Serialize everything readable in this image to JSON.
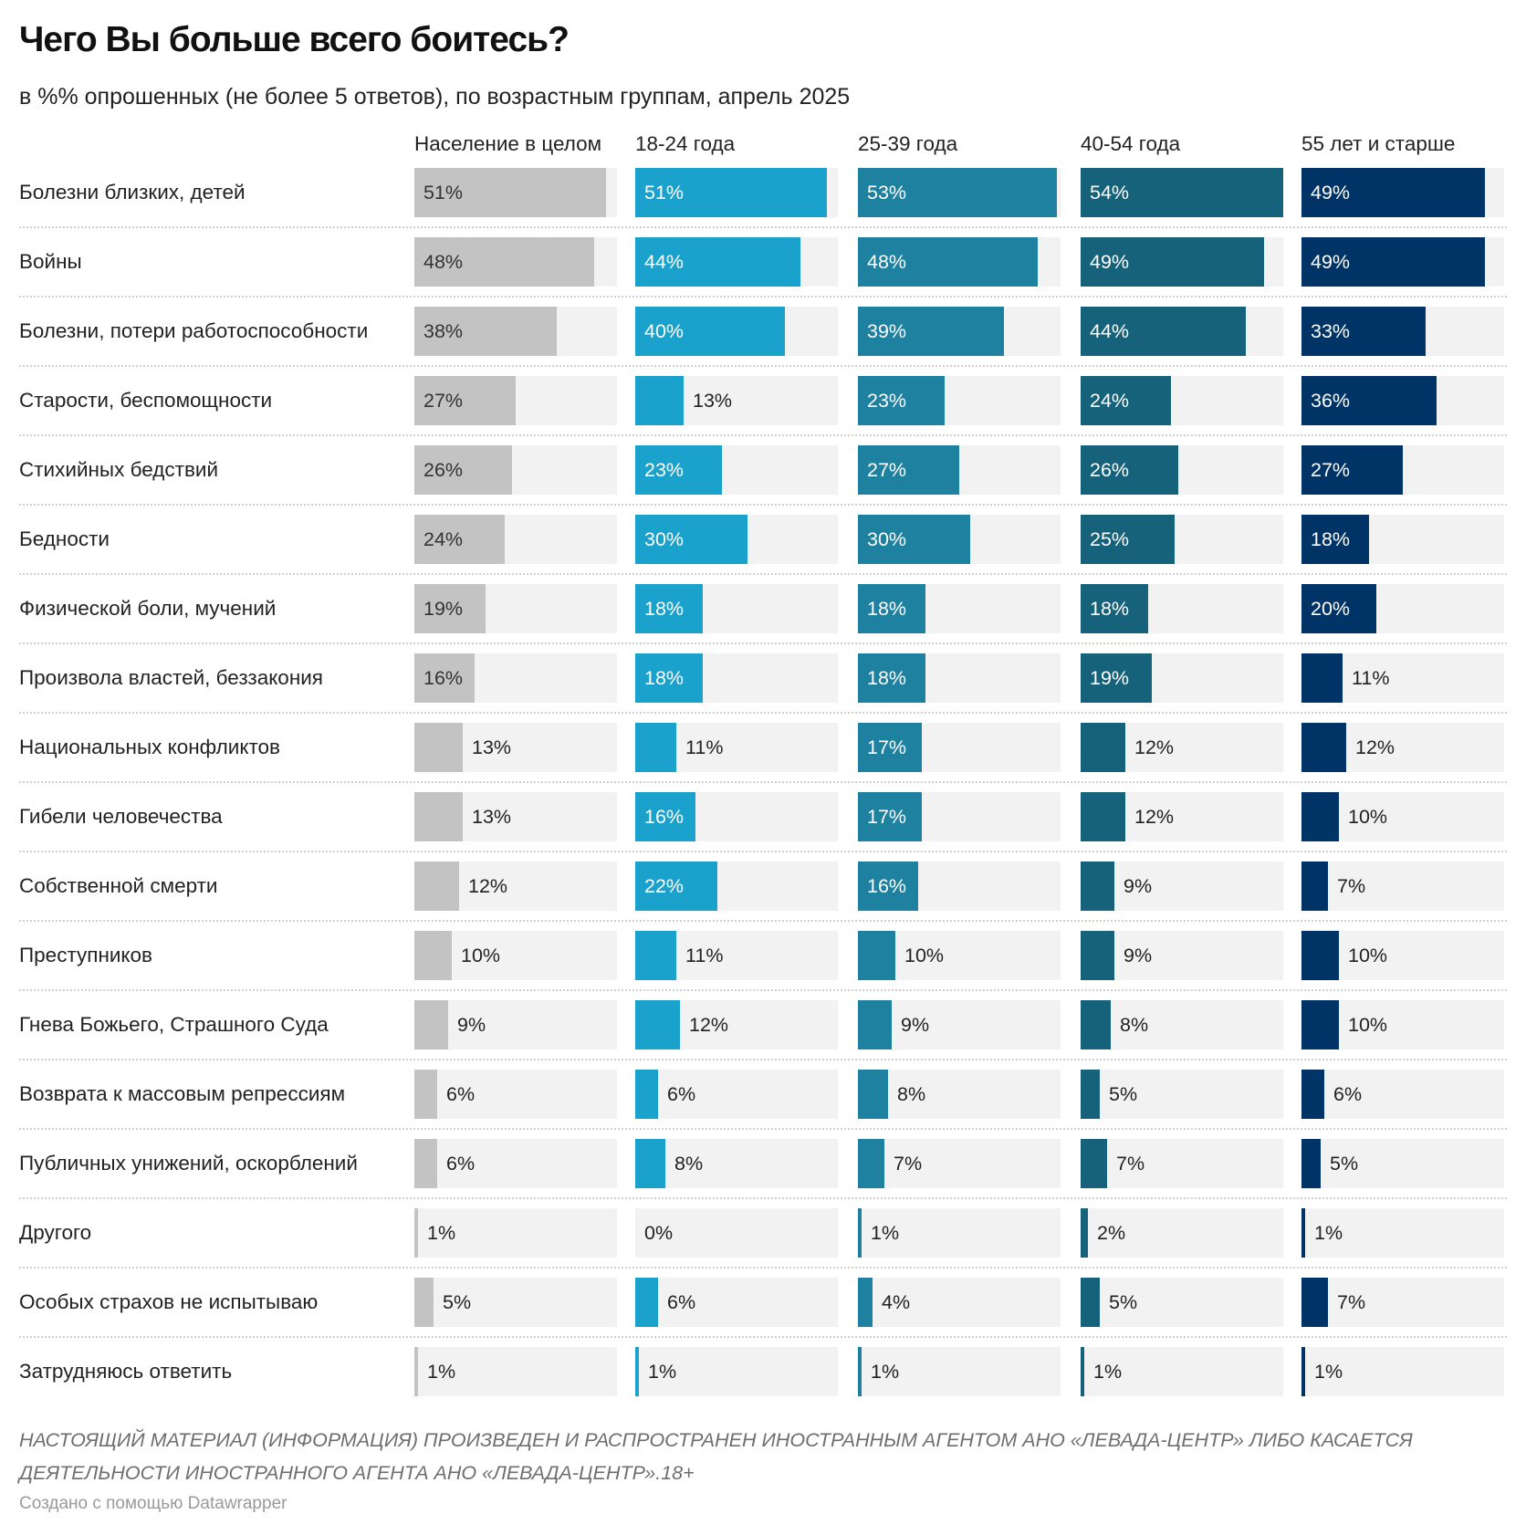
{
  "chart_data": {
    "type": "bar",
    "title": "Чего Вы больше всего боитесь?",
    "subtitle": "в %% опрошенных (не более 5 ответов), по возрастным группам, апрель 2025",
    "xlabel": "",
    "ylabel": "",
    "xlim": [
      0,
      54
    ],
    "grid": false,
    "legend": "none",
    "value_suffix": "%",
    "categories": [
      "Болезни близких, детей",
      "Войны",
      "Болезни, потери работоспособности",
      "Старости, беспомощности",
      "Стихийных бедствий",
      "Бедности",
      "Физической боли, мучений",
      "Произвола властей, беззакония",
      "Национальных конфликтов",
      "Гибели человечества",
      "Собственной смерти",
      "Преступников",
      "Гнева Божьего, Страшного Суда",
      "Возврата к массовым репрессиям",
      "Публичных унижений, оскорблений",
      "Другого",
      "Особых страхов не испытываю",
      "Затрудняюсь ответить"
    ],
    "series": [
      {
        "name": "Население в целом",
        "color": "#c3c3c3",
        "values": [
          51,
          48,
          38,
          27,
          26,
          24,
          19,
          16,
          13,
          13,
          12,
          10,
          9,
          6,
          6,
          1,
          5,
          1
        ]
      },
      {
        "name": "18-24 года",
        "color": "#1aa2cc",
        "values": [
          51,
          44,
          40,
          13,
          23,
          30,
          18,
          18,
          11,
          16,
          22,
          11,
          12,
          6,
          8,
          0,
          6,
          1
        ]
      },
      {
        "name": "25-39 года",
        "color": "#1e81a0",
        "values": [
          53,
          48,
          39,
          23,
          27,
          30,
          18,
          18,
          17,
          17,
          16,
          10,
          9,
          8,
          7,
          1,
          4,
          1
        ]
      },
      {
        "name": "40-54 года",
        "color": "#17627b",
        "values": [
          54,
          49,
          44,
          24,
          26,
          25,
          18,
          19,
          12,
          12,
          9,
          9,
          8,
          5,
          7,
          2,
          5,
          1
        ]
      },
      {
        "name": "55 лет и старше",
        "color": "#003366",
        "values": [
          49,
          49,
          33,
          36,
          27,
          18,
          20,
          11,
          12,
          10,
          7,
          10,
          10,
          6,
          5,
          1,
          7,
          1
        ]
      }
    ]
  },
  "footer": {
    "notice": "НАСТОЯЩИЙ МАТЕРИАЛ (ИНФОРМАЦИЯ) ПРОИЗВЕДЕН И РАСПРОСТРАНЕН ИНОСТРАННЫМ АГЕНТОМ АНО «ЛЕВАДА-ЦЕНТР» ЛИБО КАСАЕТСЯ ДЕЯТЕЛЬНОСТИ ИНОСТРАННОГО АГЕНТА АНО «ЛЕВАДА-ЦЕНТР».18+",
    "credit": "Создано с помощью Datawrapper"
  }
}
